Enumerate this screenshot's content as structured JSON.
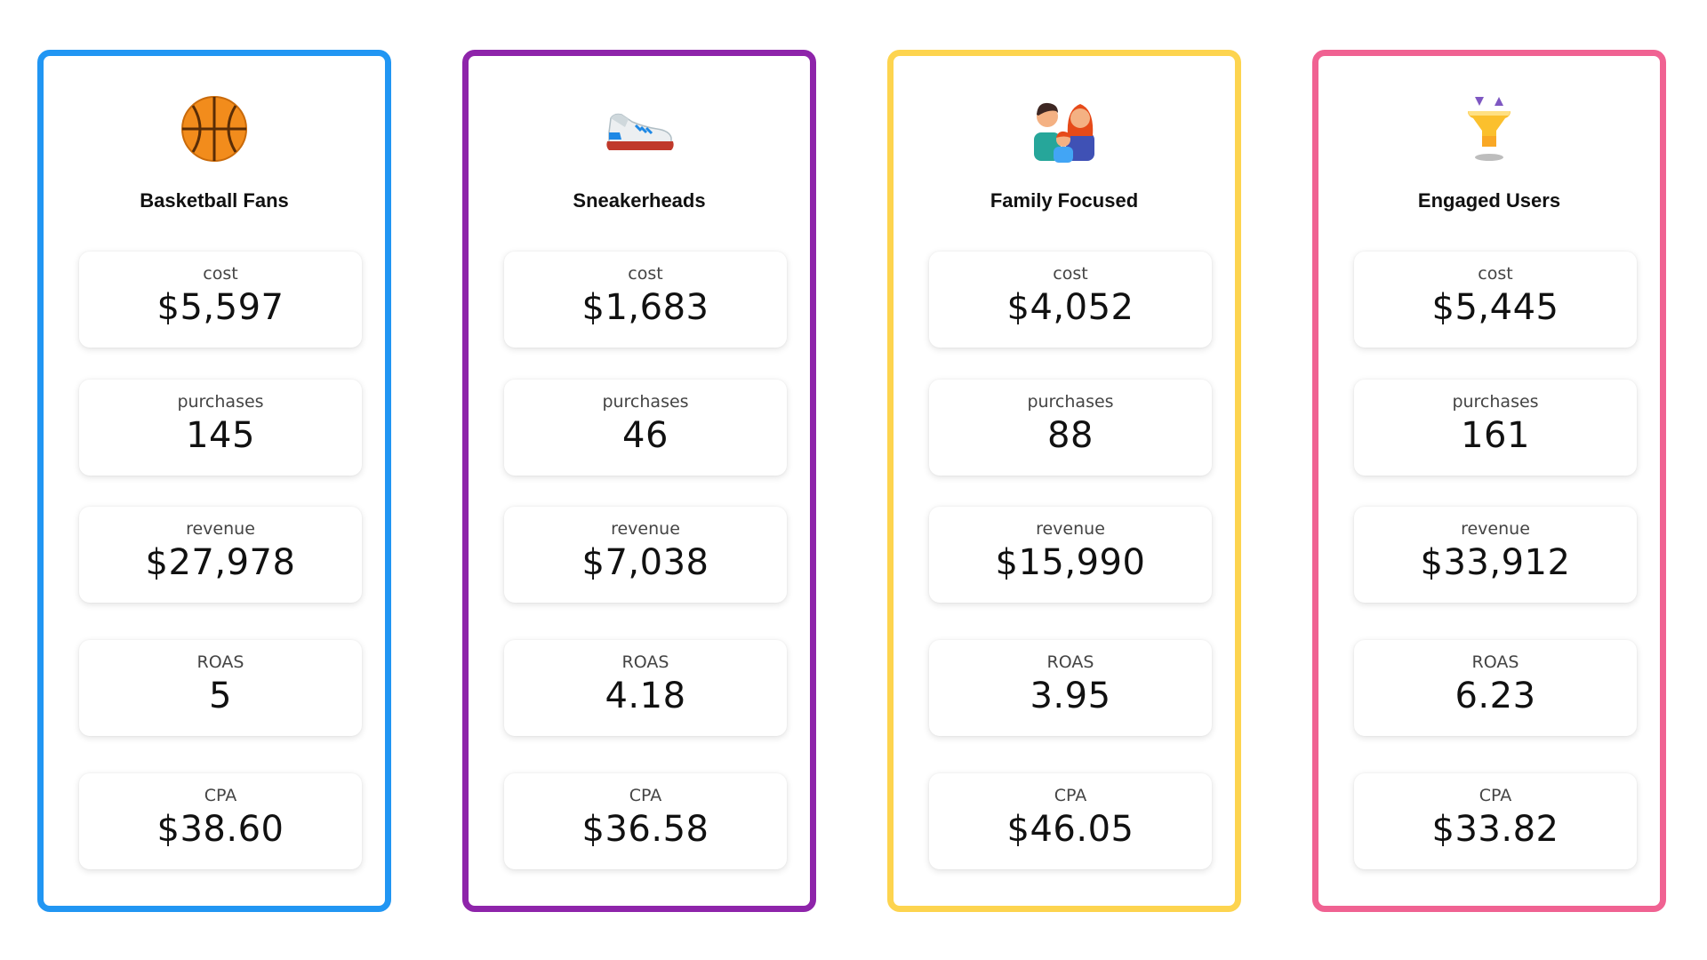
{
  "segments": [
    {
      "title": "Basketball Fans",
      "icon": "basketball-icon",
      "border_color": "#2196f3",
      "cost_label": "cost",
      "cost": "$5,597",
      "purchases_label": "purchases",
      "purchases": "145",
      "revenue_label": "revenue",
      "revenue": "$27,978",
      "roas_label": "ROAS",
      "roas": "5",
      "cpa_label": "CPA",
      "cpa": "$38.60"
    },
    {
      "title": "Sneakerheads",
      "icon": "sneaker-icon",
      "border_color": "#8e24aa",
      "cost_label": "cost",
      "cost": "$1,683",
      "purchases_label": "purchases",
      "purchases": "46",
      "revenue_label": "revenue",
      "revenue": "$7,038",
      "roas_label": "ROAS",
      "roas": "4.18",
      "cpa_label": "CPA",
      "cpa": "$36.58"
    },
    {
      "title": "Family Focused",
      "icon": "family-icon",
      "border_color": "#fdd44f",
      "cost_label": "cost",
      "cost": "$4,052",
      "purchases_label": "purchases",
      "purchases": "88",
      "revenue_label": "revenue",
      "revenue": "$15,990",
      "roas_label": "ROAS",
      "roas": "3.95",
      "cpa_label": "CPA",
      "cpa": "$46.05"
    },
    {
      "title": "Engaged Users",
      "icon": "funnel-icon",
      "border_color": "#f06292",
      "cost_label": "cost",
      "cost": "$5,445",
      "purchases_label": "purchases",
      "purchases": "161",
      "revenue_label": "revenue",
      "revenue": "$33,912",
      "roas_label": "ROAS",
      "roas": "6.23",
      "cpa_label": "CPA",
      "cpa": "$33.82"
    }
  ]
}
